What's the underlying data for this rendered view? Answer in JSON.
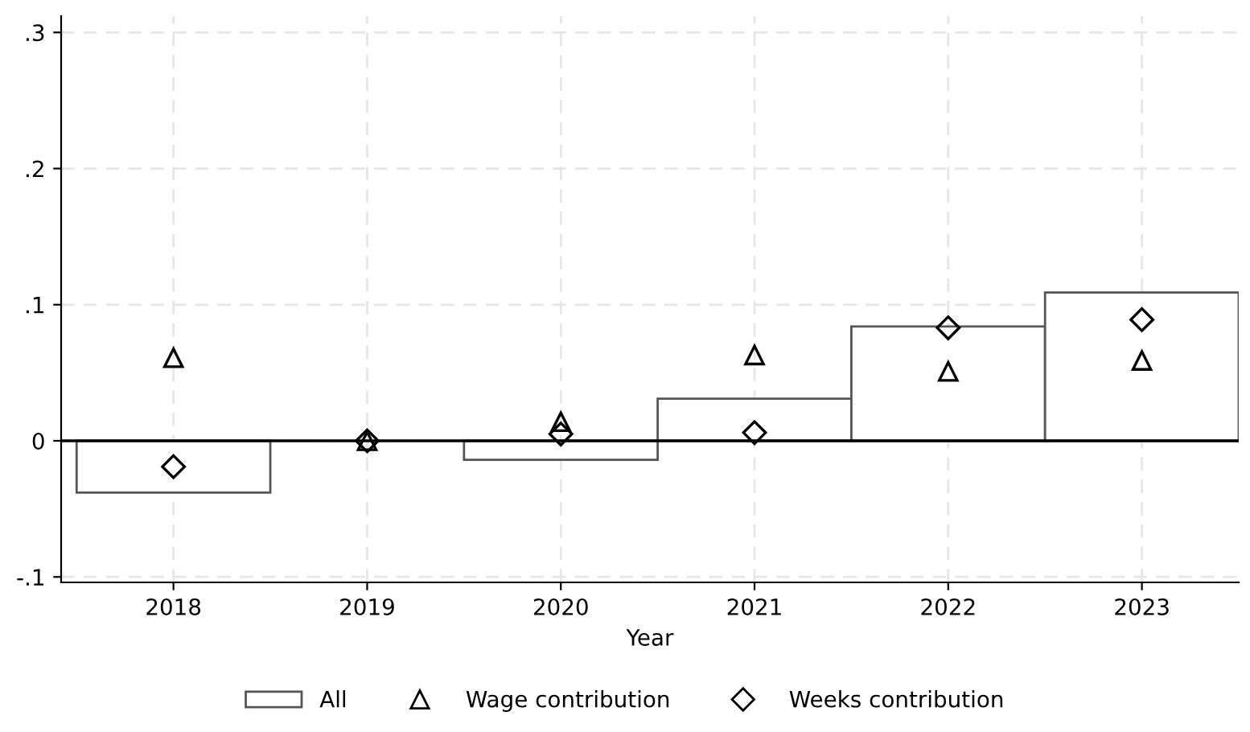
{
  "chart_data": {
    "type": "bar",
    "xlabel": "Year",
    "categories": [
      "2018",
      "2019",
      "2020",
      "2021",
      "2022",
      "2023"
    ],
    "series": [
      {
        "name": "All",
        "color": "#ffffff",
        "values": [
          -0.038,
          null,
          -0.014,
          0.031,
          0.084,
          0.109
        ]
      },
      {
        "name": "Wage contribution",
        "type": "scatter",
        "marker": "triangle",
        "color": "#000000",
        "values": [
          0.061,
          0,
          0.014,
          0.063,
          0.051,
          0.059
        ]
      },
      {
        "name": "Weeks contribution",
        "type": "scatter",
        "marker": "diamond",
        "color": "#000000",
        "values": [
          -0.019,
          0,
          0.005,
          0.006,
          0.083,
          0.089
        ]
      }
    ],
    "ylim": [
      -0.104,
      0.312
    ],
    "yticks": [
      {
        "value": -0.1,
        "label": "-.1"
      },
      0,
      {
        "value": 0.1,
        "label": ".1"
      },
      {
        "value": 0.2,
        "label": ".2"
      },
      {
        "value": 0.3,
        "label": ".3"
      }
    ],
    "ref_lines": [
      {
        "axis": "y",
        "value": 0,
        "color": "#000000"
      }
    ],
    "grid": true,
    "legend": "bottom"
  }
}
